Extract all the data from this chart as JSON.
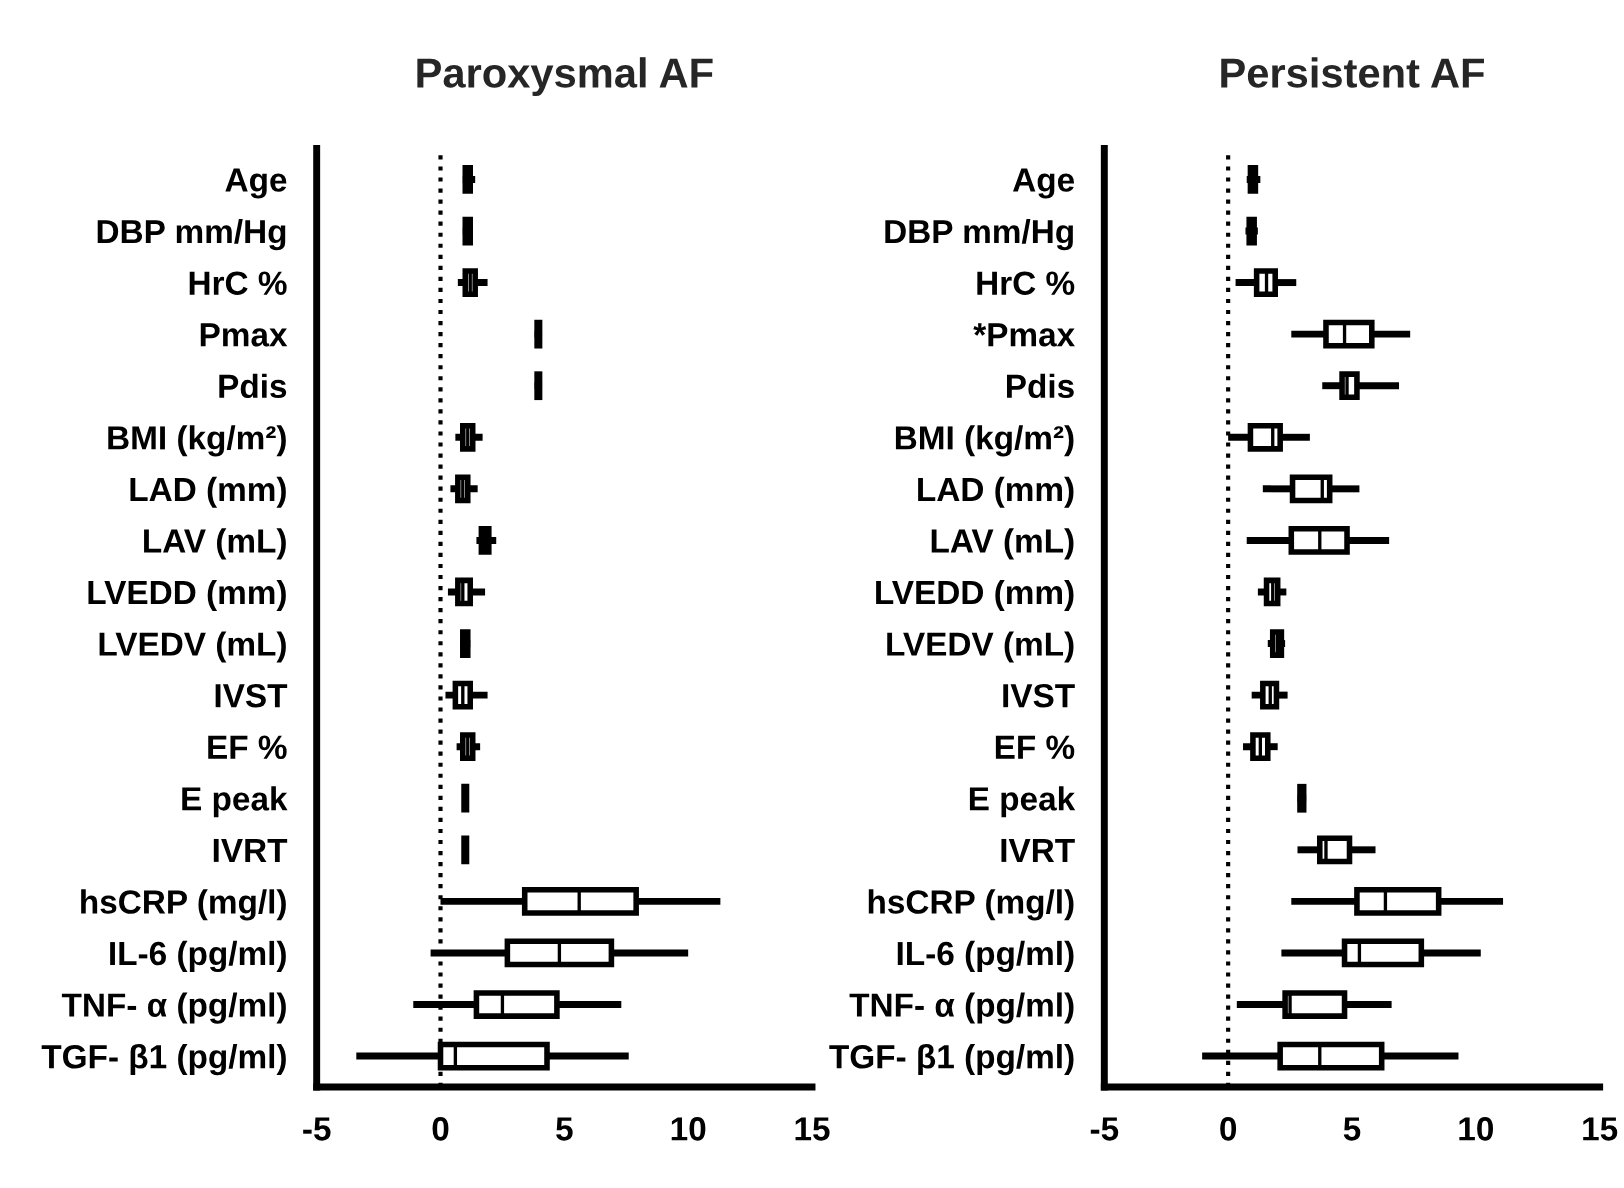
{
  "chart_data": [
    {
      "type": "box",
      "title": "Paroxysmal AF",
      "orientation": "horizontal",
      "grid": false,
      "categories": [
        "Age",
        "DBP mm/Hg",
        "HrC %",
        "Pmax",
        "Pdis",
        "BMI (kg/m²)",
        "LAD (mm)",
        "LAV (mL)",
        "LVEDD (mm)",
        "LVEDV (mL)",
        "IVST",
        "EF %",
        "E peak",
        "IVRT",
        "hsCRP (mg/l)",
        "IL-6 (pg/ml)",
        "TNF- α (pg/ml)",
        "TGF- β1 (pg/ml)"
      ],
      "boxes": [
        {
          "low": 0.9,
          "q1": 1.0,
          "median": 1.1,
          "q3": 1.2,
          "high": 1.4
        },
        {
          "low": 0.9,
          "q1": 1.0,
          "median": 1.1,
          "q3": 1.2,
          "high": 1.3
        },
        {
          "low": 0.7,
          "q1": 1.0,
          "median": 1.2,
          "q3": 1.4,
          "high": 1.9
        },
        {
          "low": 3.8,
          "q1": 3.9,
          "median": 3.95,
          "q3": 4.0,
          "high": 4.1
        },
        {
          "low": 3.8,
          "q1": 3.9,
          "median": 3.95,
          "q3": 4.0,
          "high": 4.1
        },
        {
          "low": 0.6,
          "q1": 0.9,
          "median": 1.1,
          "q3": 1.3,
          "high": 1.7
        },
        {
          "low": 0.4,
          "q1": 0.7,
          "median": 0.9,
          "q3": 1.1,
          "high": 1.5
        },
        {
          "low": 1.45,
          "q1": 1.65,
          "median": 1.8,
          "q3": 1.95,
          "high": 2.25
        },
        {
          "low": 0.3,
          "q1": 0.7,
          "median": 0.9,
          "q3": 1.2,
          "high": 1.8
        },
        {
          "low": 0.8,
          "q1": 0.9,
          "median": 1.0,
          "q3": 1.1,
          "high": 1.2
        },
        {
          "low": 0.2,
          "q1": 0.6,
          "median": 0.9,
          "q3": 1.2,
          "high": 1.9
        },
        {
          "low": 0.65,
          "q1": 0.9,
          "median": 1.1,
          "q3": 1.3,
          "high": 1.6
        },
        {
          "low": 0.9,
          "q1": 0.95,
          "median": 1.0,
          "q3": 1.05,
          "high": 1.1
        },
        {
          "low": 0.9,
          "q1": 0.95,
          "median": 1.0,
          "q3": 1.05,
          "high": 1.1
        },
        {
          "low": 0.0,
          "q1": 3.4,
          "median": 5.6,
          "q3": 7.9,
          "high": 11.3
        },
        {
          "low": -0.4,
          "q1": 2.7,
          "median": 4.8,
          "q3": 6.9,
          "high": 10.0
        },
        {
          "low": -1.1,
          "q1": 1.45,
          "median": 2.5,
          "q3": 4.7,
          "high": 7.3
        },
        {
          "low": -3.4,
          "q1": 0.0,
          "median": 0.6,
          "q3": 4.3,
          "high": 7.6
        }
      ],
      "xlim": [
        -5,
        15
      ],
      "xticks": [
        -5,
        0,
        5,
        10,
        15
      ],
      "ref_lines": [
        {
          "axis": "x",
          "value": 0,
          "line_style": "dotted"
        }
      ]
    },
    {
      "type": "box",
      "title": "Persistent AF",
      "orientation": "horizontal",
      "grid": false,
      "categories": [
        "Age",
        "DBP mm/Hg",
        "HrC %",
        "*Pmax",
        "Pdis",
        "BMI (kg/m²)",
        "LAD (mm)",
        "LAV (mL)",
        "LVEDD (mm)",
        "LVEDV (mL)",
        "IVST",
        "EF %",
        "E peak",
        "IVRT",
        "hsCRP (mg/l)",
        "IL-6 (pg/ml)",
        "TNF- α (pg/ml)",
        "TGF- β1 (pg/ml)"
      ],
      "boxes": [
        {
          "low": 0.75,
          "q1": 0.9,
          "median": 1.0,
          "q3": 1.1,
          "high": 1.3
        },
        {
          "low": 0.7,
          "q1": 0.85,
          "median": 0.95,
          "q3": 1.05,
          "high": 1.2
        },
        {
          "low": 0.3,
          "q1": 1.15,
          "median": 1.55,
          "q3": 1.9,
          "high": 2.75
        },
        {
          "low": 2.55,
          "q1": 3.95,
          "median": 4.7,
          "q3": 5.8,
          "high": 7.35
        },
        {
          "low": 3.8,
          "q1": 4.6,
          "median": 4.8,
          "q3": 5.2,
          "high": 6.9
        },
        {
          "low": 0.0,
          "q1": 0.9,
          "median": 1.8,
          "q3": 2.1,
          "high": 3.3
        },
        {
          "low": 1.4,
          "q1": 2.6,
          "median": 3.8,
          "q3": 4.1,
          "high": 5.3
        },
        {
          "low": 0.75,
          "q1": 2.55,
          "median": 3.7,
          "q3": 4.8,
          "high": 6.5
        },
        {
          "low": 1.2,
          "q1": 1.55,
          "median": 1.8,
          "q3": 2.0,
          "high": 2.35
        },
        {
          "low": 1.6,
          "q1": 1.8,
          "median": 2.0,
          "q3": 2.15,
          "high": 2.3
        },
        {
          "low": 0.95,
          "q1": 1.4,
          "median": 1.7,
          "q3": 1.95,
          "high": 2.4
        },
        {
          "low": 0.6,
          "q1": 1.0,
          "median": 1.3,
          "q3": 1.6,
          "high": 2.0
        },
        {
          "low": 2.8,
          "q1": 2.9,
          "median": 3.0,
          "q3": 3.05,
          "high": 3.15
        },
        {
          "low": 2.8,
          "q1": 3.7,
          "median": 3.95,
          "q3": 4.9,
          "high": 5.95
        },
        {
          "low": 2.55,
          "q1": 5.2,
          "median": 6.35,
          "q3": 8.5,
          "high": 11.1
        },
        {
          "low": 2.15,
          "q1": 4.7,
          "median": 5.3,
          "q3": 7.8,
          "high": 10.2
        },
        {
          "low": 0.35,
          "q1": 2.3,
          "median": 2.5,
          "q3": 4.7,
          "high": 6.6
        },
        {
          "low": -1.05,
          "q1": 2.1,
          "median": 3.7,
          "q3": 6.2,
          "high": 9.3
        }
      ],
      "xlim": [
        -5,
        15
      ],
      "xticks": [
        -5,
        0,
        5,
        10,
        15
      ],
      "ref_lines": [
        {
          "axis": "x",
          "value": 0,
          "line_style": "dotted"
        }
      ]
    }
  ]
}
